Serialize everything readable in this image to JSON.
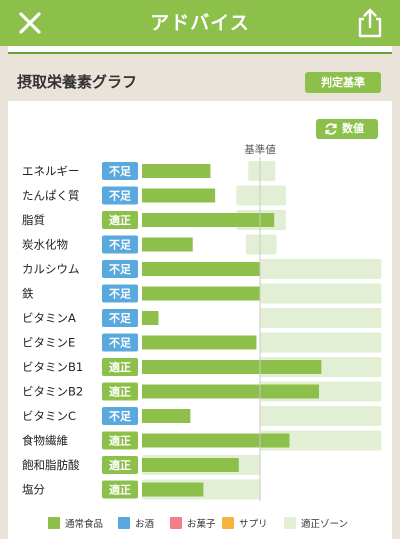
{
  "header": {
    "title": "アドバイス",
    "close_icon": "close-icon",
    "share_icon": "share-icon"
  },
  "section": {
    "title": "摂取栄養素グラフ",
    "standard_button": "判定基準",
    "numeric_button": "数値",
    "numeric_icon": "refresh-icon"
  },
  "chart_data": {
    "type": "bar",
    "reference_label": "基準値",
    "status_colors": {
      "不足": "#5aa9dc",
      "適正": "#8cc04b"
    },
    "bar_color": "#8cc04b",
    "zone_color": "#e2efd4",
    "rows": [
      {
        "name": "エネルギー",
        "status": "不足",
        "value": 58,
        "zone": [
          90,
          113
        ]
      },
      {
        "name": "たんぱく質",
        "status": "不足",
        "value": 62,
        "zone": [
          80,
          122
        ]
      },
      {
        "name": "脂質",
        "status": "適正",
        "value": 112,
        "zone": [
          80,
          122
        ]
      },
      {
        "name": "炭水化物",
        "status": "不足",
        "value": 43,
        "zone": [
          88,
          114
        ]
      },
      {
        "name": "カルシウム",
        "status": "不足",
        "value": 100,
        "zone": [
          100,
          203
        ]
      },
      {
        "name": "鉄",
        "status": "不足",
        "value": 100,
        "zone": [
          100,
          203
        ]
      },
      {
        "name": "ビタミンA",
        "status": "不足",
        "value": 14,
        "zone": [
          100,
          203
        ]
      },
      {
        "name": "ビタミンE",
        "status": "不足",
        "value": 97,
        "zone": [
          100,
          203
        ]
      },
      {
        "name": "ビタミンB1",
        "status": "適正",
        "value": 152,
        "zone": [
          100,
          203
        ]
      },
      {
        "name": "ビタミンB2",
        "status": "適正",
        "value": 150,
        "zone": [
          100,
          203
        ]
      },
      {
        "name": "ビタミンC",
        "status": "不足",
        "value": 41,
        "zone": [
          100,
          203
        ]
      },
      {
        "name": "食物繊維",
        "status": "適正",
        "value": 125,
        "zone": [
          100,
          203
        ]
      },
      {
        "name": "飽和脂肪酸",
        "status": "適正",
        "value": 82,
        "zone": [
          0,
          100
        ]
      },
      {
        "name": "塩分",
        "status": "適正",
        "value": 52,
        "zone": [
          0,
          100
        ]
      }
    ],
    "legend": [
      {
        "label": "通常食品",
        "color": "#8cc04b"
      },
      {
        "label": "お酒",
        "color": "#5aa9dc"
      },
      {
        "label": "お菓子",
        "color": "#f07f8a"
      },
      {
        "label": "サプリ",
        "color": "#f5b43c"
      },
      {
        "label": "適正ゾーン",
        "color": "#e2efd4"
      }
    ]
  }
}
